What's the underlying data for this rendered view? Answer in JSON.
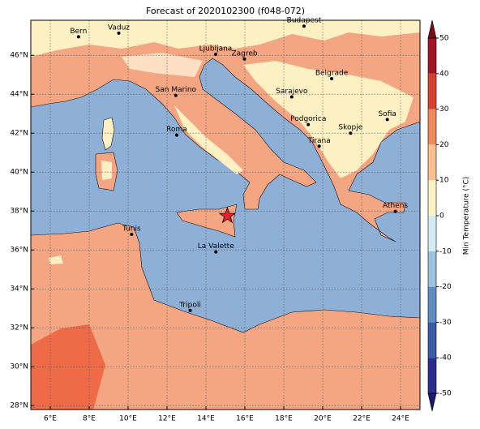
{
  "title": "Forecast of 2020102300 (f048-072)",
  "map": {
    "xlim": [
      5,
      25
    ],
    "ylim": [
      27.8,
      47.8
    ],
    "xticks": [
      {
        "value": 6,
        "label": "6°E"
      },
      {
        "value": 8,
        "label": "8°E"
      },
      {
        "value": 10,
        "label": "10°E"
      },
      {
        "value": 12,
        "label": "12°E"
      },
      {
        "value": 14,
        "label": "14°E"
      },
      {
        "value": 16,
        "label": "16°E"
      },
      {
        "value": 18,
        "label": "18°E"
      },
      {
        "value": 20,
        "label": "20°E"
      },
      {
        "value": 22,
        "label": "22°E"
      },
      {
        "value": 24,
        "label": "24°E"
      }
    ],
    "yticks": [
      {
        "value": 28,
        "label": "28°N"
      },
      {
        "value": 30,
        "label": "30°N"
      },
      {
        "value": 32,
        "label": "32°N"
      },
      {
        "value": 34,
        "label": "34°N"
      },
      {
        "value": 36,
        "label": "36°N"
      },
      {
        "value": 38,
        "label": "38°N"
      },
      {
        "value": 40,
        "label": "40°N"
      },
      {
        "value": 42,
        "label": "42°N"
      },
      {
        "value": 44,
        "label": "44°N"
      },
      {
        "value": 46,
        "label": "46°N"
      }
    ],
    "grid": true,
    "cities": [
      {
        "name": "Bern",
        "lon": 7.45,
        "lat": 46.95
      },
      {
        "name": "Vaduz",
        "lon": 9.52,
        "lat": 47.14
      },
      {
        "name": "Budapest",
        "lon": 19.04,
        "lat": 47.5
      },
      {
        "name": "Ljubljana",
        "lon": 14.5,
        "lat": 46.05
      },
      {
        "name": "Zagreb",
        "lon": 15.98,
        "lat": 45.81
      },
      {
        "name": "Belgrade",
        "lon": 20.46,
        "lat": 44.8
      },
      {
        "name": "San Marino",
        "lon": 12.45,
        "lat": 43.94
      },
      {
        "name": "Sarajevo",
        "lon": 18.41,
        "lat": 43.86
      },
      {
        "name": "Sofia",
        "lon": 23.32,
        "lat": 42.7
      },
      {
        "name": "Podgorica",
        "lon": 19.26,
        "lat": 42.44
      },
      {
        "name": "Skopje",
        "lon": 21.43,
        "lat": 42.0
      },
      {
        "name": "Roma",
        "lon": 12.5,
        "lat": 41.9
      },
      {
        "name": "Tirana",
        "lon": 19.82,
        "lat": 41.33
      },
      {
        "name": "Athens",
        "lon": 23.73,
        "lat": 37.98
      },
      {
        "name": "Tunis",
        "lon": 10.18,
        "lat": 36.8
      },
      {
        "name": "La Valette",
        "lon": 14.51,
        "lat": 35.9
      },
      {
        "name": "Tripoli",
        "lon": 13.19,
        "lat": 32.89
      }
    ],
    "marker": {
      "lon": 15.1,
      "lat": 37.75,
      "color": "#e8202a"
    }
  },
  "colorbar": {
    "label": "Min Temperature (°C)",
    "lim": [
      -50,
      50
    ],
    "ticks": [
      -50,
      -40,
      -30,
      -20,
      -10,
      0,
      10,
      20,
      30,
      40,
      50
    ],
    "colors": [
      "#2a2d8e",
      "#3b5ba7",
      "#5d8ec3",
      "#9cc3dd",
      "#d6ecf3",
      "#fdf4c6",
      "#fcbf8f",
      "#f08a5d",
      "#d8412e",
      "#a21424"
    ],
    "under": "#1b1a6e",
    "over": "#7a0a1a"
  }
}
